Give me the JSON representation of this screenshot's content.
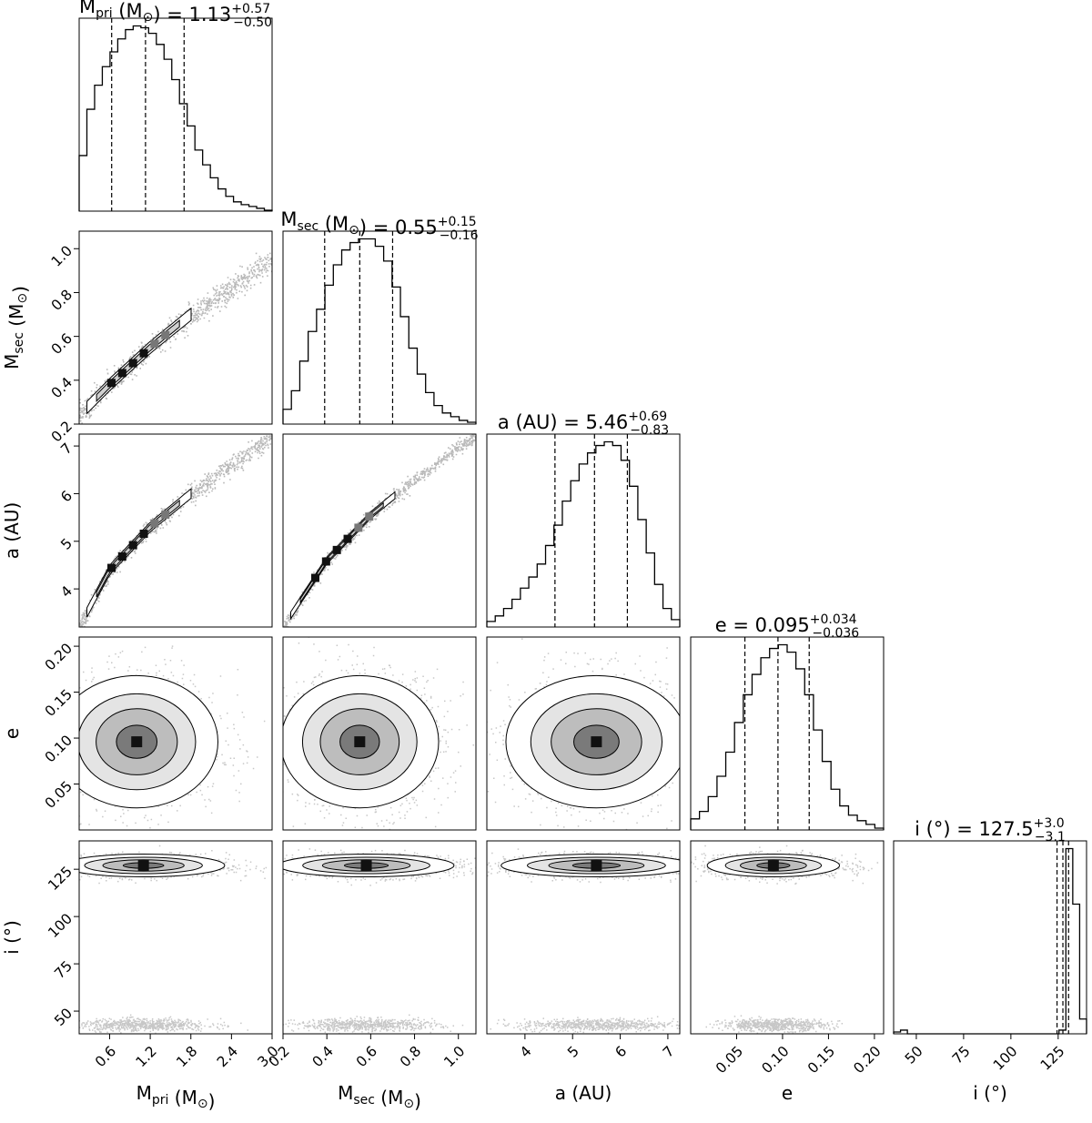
{
  "chart_data": {
    "type": "corner",
    "parameters": [
      {
        "key": "mpri",
        "label": {
          "base": "M",
          "sub": "pri",
          "unit": " (M",
          "unit_sub": "⊙",
          "close": ")"
        },
        "title": {
          "value": "= 1.13",
          "plus": "+0.57",
          "minus": "−0.50"
        },
        "range": [
          0.15,
          3.0
        ],
        "ticks": [
          0.6,
          1.2,
          1.8,
          2.4,
          3.0
        ],
        "tick_labels": [
          "0.6",
          "1.2",
          "1.8",
          "2.4",
          "3.0"
        ],
        "quantiles": [
          0.63,
          1.13,
          1.7
        ],
        "histogram": [
          0.3,
          0.55,
          0.68,
          0.78,
          0.86,
          0.93,
          0.98,
          1.0,
          0.99,
          0.96,
          0.9,
          0.82,
          0.71,
          0.58,
          0.46,
          0.33,
          0.25,
          0.18,
          0.12,
          0.08,
          0.05,
          0.035,
          0.025,
          0.015,
          0.005
        ]
      },
      {
        "key": "msec",
        "label": {
          "base": "M",
          "sub": "sec",
          "unit": " (M",
          "unit_sub": "⊙",
          "close": ")"
        },
        "title": {
          "value": "= 0.55",
          "plus": "+0.15",
          "minus": "−0.16"
        },
        "range": [
          0.2,
          1.08
        ],
        "ticks": [
          0.2,
          0.4,
          0.6,
          0.8,
          1.0
        ],
        "tick_labels": [
          "0.2",
          "0.4",
          "0.6",
          "0.8",
          "1.0"
        ],
        "quantiles": [
          0.39,
          0.55,
          0.7
        ],
        "histogram": [
          0.08,
          0.18,
          0.34,
          0.5,
          0.62,
          0.75,
          0.86,
          0.94,
          0.98,
          1.0,
          1.0,
          0.96,
          0.88,
          0.74,
          0.58,
          0.41,
          0.27,
          0.17,
          0.1,
          0.06,
          0.04,
          0.02,
          0.01
        ]
      },
      {
        "key": "a",
        "label": {
          "base": "a",
          "sub": "",
          "unit": " (AU)",
          "unit_sub": "",
          "close": ""
        },
        "title": {
          "value": "= 5.46",
          "plus": "+0.69",
          "minus": "−0.83"
        },
        "range": [
          3.2,
          7.25
        ],
        "ticks": [
          4,
          5,
          6,
          7
        ],
        "tick_labels": [
          "4",
          "5",
          "6",
          "7"
        ],
        "quantiles": [
          4.63,
          5.46,
          6.15
        ],
        "histogram": [
          0.03,
          0.06,
          0.1,
          0.15,
          0.21,
          0.27,
          0.34,
          0.44,
          0.55,
          0.68,
          0.79,
          0.88,
          0.94,
          0.98,
          1.0,
          0.98,
          0.9,
          0.76,
          0.58,
          0.4,
          0.23,
          0.1,
          0.04
        ]
      },
      {
        "key": "e",
        "label": {
          "base": "e",
          "sub": "",
          "unit": "",
          "unit_sub": "",
          "close": ""
        },
        "title": {
          "value": "e = 0.095",
          "plus": "+0.034",
          "minus": "−0.036"
        },
        "range": [
          0.0,
          0.21
        ],
        "ticks": [
          0.05,
          0.1,
          0.15,
          0.2
        ],
        "tick_labels": [
          "0.05",
          "0.10",
          "0.15",
          "0.20"
        ],
        "quantiles": [
          0.059,
          0.095,
          0.129
        ],
        "histogram": [
          0.06,
          0.1,
          0.18,
          0.29,
          0.42,
          0.58,
          0.73,
          0.84,
          0.93,
          0.98,
          1.0,
          0.96,
          0.87,
          0.73,
          0.54,
          0.37,
          0.22,
          0.13,
          0.08,
          0.05,
          0.03,
          0.01
        ]
      },
      {
        "key": "inc",
        "label": {
          "base": "i",
          "sub": "",
          "unit": " (°)",
          "unit_sub": "",
          "close": ""
        },
        "title": {
          "value": "i (°) = 127.5",
          "plus": "+3.0",
          "minus": "−3.1"
        },
        "range": [
          38,
          140
        ],
        "ticks": [
          50,
          75,
          100,
          125
        ],
        "tick_labels": [
          "50",
          "75",
          "100",
          "125"
        ],
        "quantiles": [
          124.4,
          127.5,
          130.5
        ],
        "histogram": [
          0.01,
          0.02,
          0.0,
          0.0,
          0.0,
          0.0,
          0.0,
          0.0,
          0.0,
          0.0,
          0.0,
          0.0,
          0.0,
          0.0,
          0.0,
          0.0,
          0.0,
          0.0,
          0.0,
          0.0,
          0.0,
          0.0,
          0.0,
          0.0,
          0.02,
          1.0,
          0.7,
          0.08
        ]
      }
    ],
    "pairs": [
      {
        "row": "msec",
        "col": "mpri",
        "shape": "ridge",
        "curve": [
          [
            0.15,
            0.24
          ],
          [
            0.6,
            0.38
          ],
          [
            1.2,
            0.55
          ],
          [
            1.8,
            0.7
          ],
          [
            2.4,
            0.82
          ],
          [
            3.0,
            0.96
          ]
        ],
        "spread": 0.05
      },
      {
        "row": "a",
        "col": "mpri",
        "shape": "ridge",
        "curve": [
          [
            0.15,
            3.2
          ],
          [
            0.6,
            4.4
          ],
          [
            1.2,
            5.3
          ],
          [
            1.8,
            6.0
          ],
          [
            2.4,
            6.6
          ],
          [
            3.0,
            7.2
          ]
        ],
        "spread": 0.18
      },
      {
        "row": "a",
        "col": "msec",
        "shape": "ridge",
        "curve": [
          [
            0.2,
            3.2
          ],
          [
            0.4,
            4.6
          ],
          [
            0.6,
            5.55
          ],
          [
            0.8,
            6.3
          ],
          [
            1.0,
            7.0
          ],
          [
            1.08,
            7.2
          ]
        ],
        "spread": 0.13
      },
      {
        "row": "e",
        "col": "mpri",
        "shape": "blob",
        "center": [
          1.0,
          0.096
        ],
        "sigma": [
          0.6,
          0.036
        ]
      },
      {
        "row": "e",
        "col": "msec",
        "shape": "blob",
        "center": [
          0.55,
          0.096
        ],
        "sigma": [
          0.18,
          0.036
        ]
      },
      {
        "row": "e",
        "col": "a",
        "shape": "blob",
        "center": [
          5.5,
          0.096
        ],
        "sigma": [
          0.95,
          0.036
        ]
      },
      {
        "row": "inc",
        "col": "mpri",
        "shape": "bands",
        "center": [
          1.1,
          127.0
        ],
        "sigma": [
          0.6,
          3.0
        ],
        "minor": 43.0
      },
      {
        "row": "inc",
        "col": "msec",
        "shape": "bands",
        "center": [
          0.58,
          127.0
        ],
        "sigma": [
          0.2,
          3.0
        ],
        "minor": 43.0
      },
      {
        "row": "inc",
        "col": "a",
        "shape": "bands",
        "center": [
          5.5,
          127.0
        ],
        "sigma": [
          1.0,
          3.0
        ],
        "minor": 43.0
      },
      {
        "row": "inc",
        "col": "e",
        "shape": "bands",
        "center": [
          0.09,
          127.0
        ],
        "sigma": [
          0.036,
          3.0
        ],
        "minor": 43.0
      }
    ],
    "y_axis_params": [
      "msec",
      "a",
      "e",
      "inc"
    ],
    "x_axis_params": [
      "mpri",
      "msec",
      "a",
      "e",
      "inc"
    ],
    "colors": {
      "axes": "#000000",
      "hist": "#000000",
      "density": "#000000",
      "contour_fill": "#ffffff"
    }
  }
}
